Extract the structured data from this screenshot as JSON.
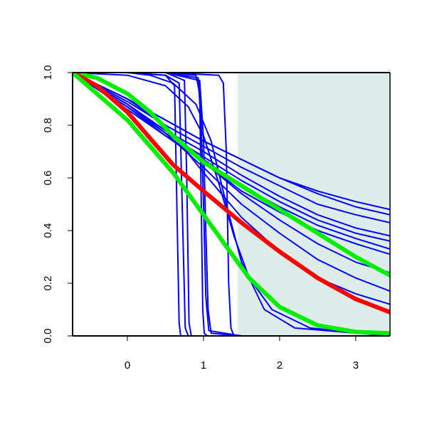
{
  "chart_data": {
    "type": "line",
    "title": "",
    "xlabel": "",
    "ylabel": "",
    "xlim": [
      -0.72,
      3.45
    ],
    "ylim": [
      0,
      1
    ],
    "grid": false,
    "legend": "none",
    "x_ticks": [
      {
        "value": 0,
        "label": "0"
      },
      {
        "value": 1,
        "label": "1"
      },
      {
        "value": 2,
        "label": "2"
      },
      {
        "value": 3,
        "label": "3"
      }
    ],
    "y_ticks": [
      {
        "value": 0,
        "label": "0.0"
      },
      {
        "value": 0.2,
        "label": "0.2"
      },
      {
        "value": 0.4,
        "label": "0.4"
      },
      {
        "value": 0.6,
        "label": "0.6"
      },
      {
        "value": 0.8,
        "label": "0.8"
      },
      {
        "value": 1,
        "label": "1.0"
      }
    ],
    "shaded_region": {
      "x_start": 1.45,
      "x_end": 3.45,
      "color": "#deecea"
    },
    "series": [
      {
        "color": "#0000ff",
        "width": "thin",
        "x": [
          -0.72,
          0.0,
          0.5,
          0.62,
          0.65,
          0.68,
          0.7,
          0.75,
          1.0,
          3.45
        ],
        "y": [
          1,
          1,
          0.99,
          0.95,
          0.5,
          0.05,
          0.0,
          0.0,
          0.0,
          0.0
        ]
      },
      {
        "color": "#0000ff",
        "width": "thin",
        "x": [
          -0.72,
          0.0,
          0.5,
          0.68,
          0.72,
          0.76,
          0.8,
          1.0,
          3.45
        ],
        "y": [
          1,
          1,
          0.99,
          0.96,
          0.5,
          0.03,
          0.0,
          0.0,
          0.0
        ]
      },
      {
        "color": "#0000ff",
        "width": "thin",
        "x": [
          -0.72,
          0.5,
          0.75,
          0.78,
          0.81,
          0.84,
          1.0,
          3.45
        ],
        "y": [
          1,
          1,
          0.97,
          0.6,
          0.05,
          0.0,
          0.0,
          0.0
        ]
      },
      {
        "color": "#0000ff",
        "width": "thin",
        "x": [
          -0.72,
          0.5,
          0.9,
          0.95,
          0.97,
          0.99,
          1.01,
          1.05,
          1.5,
          3.45
        ],
        "y": [
          1,
          1,
          0.99,
          0.92,
          0.5,
          0.1,
          0.01,
          0.0,
          0.0,
          0.0
        ]
      },
      {
        "color": "#0000ff",
        "width": "thin",
        "x": [
          -0.72,
          0.5,
          0.93,
          0.97,
          1.0,
          1.03,
          1.07,
          1.5,
          3.45
        ],
        "y": [
          1,
          1,
          0.98,
          0.8,
          0.5,
          0.15,
          0.02,
          0.0,
          0.0
        ]
      },
      {
        "color": "#0000ff",
        "width": "thin",
        "x": [
          -0.72,
          0.5,
          0.95,
          1.0,
          1.03,
          1.06,
          1.1,
          1.5,
          3.45
        ],
        "y": [
          1,
          1,
          0.97,
          0.75,
          0.4,
          0.1,
          0.01,
          0.0,
          0.0
        ]
      },
      {
        "color": "#0000ff",
        "width": "thin",
        "x": [
          -0.72,
          0.5,
          1.2,
          1.26,
          1.3,
          1.33,
          1.36,
          1.4,
          2.0,
          3.45
        ],
        "y": [
          1,
          1,
          0.99,
          0.96,
          0.7,
          0.2,
          0.03,
          0.0,
          0.0,
          0.0
        ]
      },
      {
        "color": "#0000ff",
        "width": "thin",
        "x": [
          -0.72,
          0.0,
          0.3,
          0.6,
          0.9,
          1.1,
          1.3,
          1.5,
          1.8,
          2.2,
          3.45
        ],
        "y": [
          1,
          1,
          0.99,
          0.96,
          0.88,
          0.74,
          0.5,
          0.28,
          0.1,
          0.03,
          0.0
        ]
      },
      {
        "color": "#0000ff",
        "width": "thin",
        "x": [
          -0.72,
          0.0,
          0.5,
          0.8,
          1.0,
          1.2,
          1.4,
          1.6,
          1.9,
          2.4,
          3.45
        ],
        "y": [
          1,
          0.99,
          0.95,
          0.87,
          0.76,
          0.58,
          0.38,
          0.22,
          0.1,
          0.03,
          0.0
        ]
      },
      {
        "color": "#0000ff",
        "width": "thin",
        "x": [
          -0.72,
          0.0,
          0.5,
          1.0,
          1.5,
          2.0,
          2.5,
          3.0,
          3.45
        ],
        "y": [
          1,
          0.9,
          0.82,
          0.74,
          0.67,
          0.6,
          0.55,
          0.51,
          0.48
        ]
      },
      {
        "color": "#0000ff",
        "width": "thin",
        "x": [
          -0.72,
          0.0,
          0.5,
          1.0,
          1.5,
          2.0,
          2.5,
          3.0,
          3.45
        ],
        "y": [
          1,
          0.9,
          0.82,
          0.74,
          0.67,
          0.6,
          0.54,
          0.49,
          0.46
        ]
      },
      {
        "color": "#0000ff",
        "width": "thin",
        "x": [
          -0.72,
          0.0,
          0.5,
          1.0,
          1.5,
          2.0,
          2.5,
          3.0,
          3.45
        ],
        "y": [
          1,
          0.89,
          0.8,
          0.72,
          0.64,
          0.57,
          0.5,
          0.46,
          0.43
        ]
      },
      {
        "color": "#0000ff",
        "width": "thin",
        "x": [
          -0.72,
          0.0,
          0.5,
          1.0,
          1.5,
          2.0,
          2.5,
          3.0,
          3.45
        ],
        "y": [
          1,
          0.88,
          0.78,
          0.7,
          0.61,
          0.53,
          0.46,
          0.41,
          0.38
        ]
      },
      {
        "color": "#0000ff",
        "width": "thin",
        "x": [
          -0.72,
          0.0,
          0.5,
          1.0,
          1.5,
          2.0,
          2.5,
          3.0,
          3.45
        ],
        "y": [
          1,
          0.87,
          0.77,
          0.68,
          0.59,
          0.51,
          0.44,
          0.39,
          0.36
        ]
      },
      {
        "color": "#0000ff",
        "width": "thin",
        "x": [
          -0.72,
          0.0,
          0.5,
          1.0,
          1.5,
          2.0,
          2.5,
          3.0,
          3.45
        ],
        "y": [
          1,
          0.86,
          0.76,
          0.67,
          0.57,
          0.49,
          0.42,
          0.37,
          0.33
        ]
      },
      {
        "color": "#0000ff",
        "width": "thin",
        "x": [
          -0.72,
          0.0,
          0.5,
          1.0,
          1.5,
          2.0,
          2.5,
          3.0,
          3.45
        ],
        "y": [
          1,
          0.87,
          0.76,
          0.66,
          0.55,
          0.47,
          0.4,
          0.35,
          0.31
        ]
      },
      {
        "color": "#0000ff",
        "width": "thin",
        "x": [
          -0.72,
          0.0,
          0.5,
          1.0,
          1.5,
          2.0,
          2.5,
          3.0,
          3.45
        ],
        "y": [
          1,
          0.88,
          0.78,
          0.66,
          0.54,
          0.44,
          0.35,
          0.28,
          0.24
        ]
      },
      {
        "color": "#0000ff",
        "width": "thin",
        "x": [
          -0.72,
          0.0,
          0.5,
          1.0,
          1.5,
          2.0,
          2.5,
          3.0,
          3.45
        ],
        "y": [
          1,
          0.88,
          0.77,
          0.64,
          0.5,
          0.39,
          0.29,
          0.22,
          0.17
        ]
      },
      {
        "color": "#0000ff",
        "width": "thin",
        "x": [
          -0.72,
          0.0,
          0.5,
          1.0,
          1.5,
          2.0,
          2.5,
          3.0,
          3.45
        ],
        "y": [
          1,
          0.9,
          0.8,
          0.62,
          0.45,
          0.32,
          0.22,
          0.16,
          0.12
        ]
      },
      {
        "color": "#00ee00",
        "width": "thick",
        "x": [
          -0.72,
          -0.4,
          0.0,
          0.3,
          0.6,
          1.0,
          1.5,
          2.0,
          2.5,
          3.0,
          3.45
        ],
        "y": [
          1,
          0.98,
          0.92,
          0.85,
          0.76,
          0.66,
          0.57,
          0.48,
          0.39,
          0.3,
          0.23
        ]
      },
      {
        "color": "#ff0000",
        "width": "thick",
        "x": [
          -0.72,
          -0.4,
          0.0,
          0.3,
          0.6,
          1.0,
          1.5,
          2.0,
          2.5,
          3.0,
          3.45
        ],
        "y": [
          1,
          0.95,
          0.85,
          0.75,
          0.65,
          0.55,
          0.43,
          0.32,
          0.22,
          0.14,
          0.09
        ]
      },
      {
        "color": "#00ee00",
        "width": "thick",
        "x": [
          -0.72,
          -0.4,
          0.0,
          0.3,
          0.6,
          1.0,
          1.3,
          1.6,
          2.0,
          2.5,
          3.0,
          3.45
        ],
        "y": [
          1,
          0.92,
          0.82,
          0.72,
          0.62,
          0.46,
          0.34,
          0.22,
          0.11,
          0.04,
          0.015,
          0.01
        ]
      }
    ]
  }
}
